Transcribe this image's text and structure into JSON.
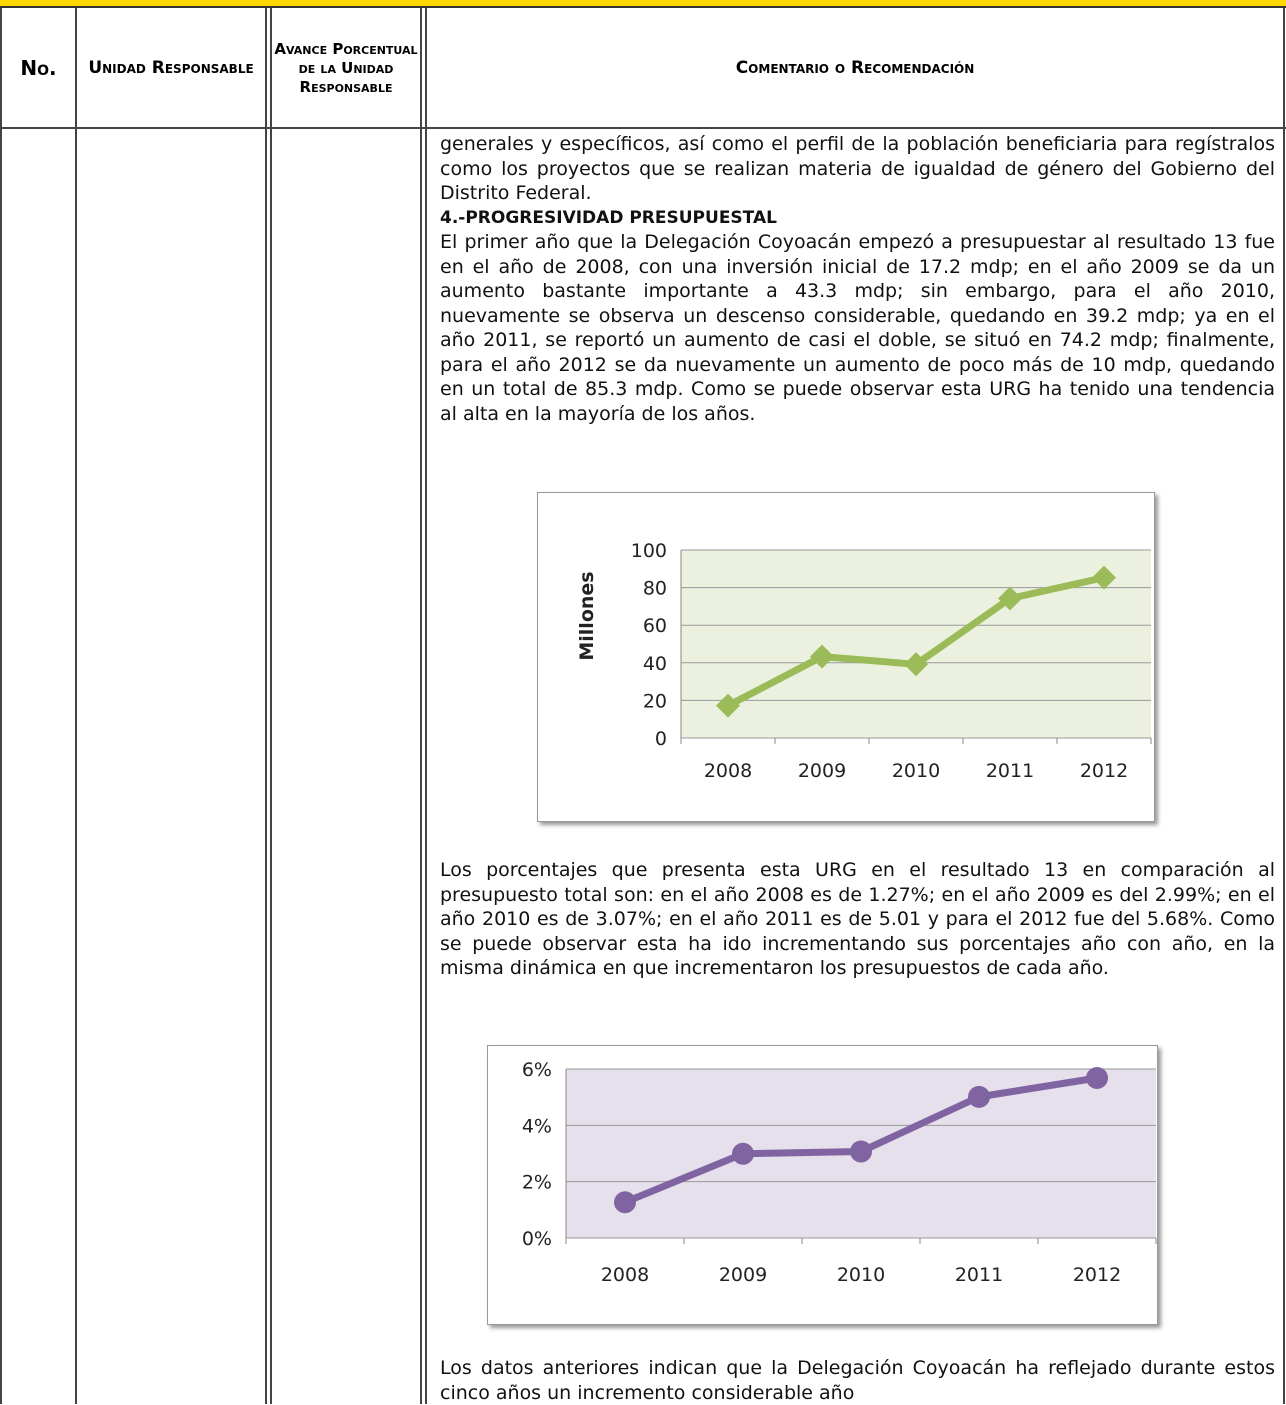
{
  "header": {
    "no": "No.",
    "unidad": "Unidad Responsable",
    "avance": "Avance Porcentual de la Unidad Responsable",
    "comentario": "Comentario o Recomendación"
  },
  "body": {
    "p1": "generales y específicos, así como el perfil de la población beneficiaria para regístralos como los proyectos que se realizan materia de igualdad de género del Gobierno del Distrito Federal.",
    "heading": "4.-PROGRESIVIDAD PRESUPUESTAL",
    "p2": "El primer año que la Delegación Coyoacán empezó a presupuestar al resultado 13 fue en el año de 2008, con una inversión inicial de 17.2 mdp; en el año 2009 se da un aumento bastante importante a 43.3 mdp; sin embargo, para el año 2010, nuevamente se observa un descenso considerable, quedando en 39.2 mdp; ya en el año 2011, se reportó un aumento de casi el doble, se situó en 74.2 mdp; finalmente, para el año 2012 se da nuevamente un aumento de poco más de 10 mdp, quedando en un total de 85.3 mdp. Como se puede observar esta URG ha tenido una tendencia al alta en la mayoría de los años.",
    "p3": "Los porcentajes que presenta esta URG en el resultado 13 en comparación al presupuesto total son: en el año 2008 es de 1.27%; en el año 2009 es del 2.99%; en el año 2010 es de 3.07%; en el año 2011 es de 5.01 y para el 2012 fue del 5.68%. Como se puede observar esta ha ido incrementando sus porcentajes año con año, en la misma dinámica en que incrementaron los presupuestos de cada año.",
    "p4": "Los datos anteriores  indican que la Delegación Coyoacán ha reflejado durante estos cinco años un incremento considerable año"
  },
  "chart_data": [
    {
      "type": "line",
      "y_label": "Millones",
      "categories": [
        "2008",
        "2009",
        "2010",
        "2011",
        "2012"
      ],
      "values": [
        17.2,
        43.3,
        39.2,
        74.2,
        85.3
      ],
      "color": "#9bbb59",
      "marker": "diamond",
      "background": "#ebf1de",
      "ylim": [
        0,
        100
      ],
      "yticks": [
        0,
        20,
        40,
        60,
        80,
        100
      ],
      "grid": true
    },
    {
      "type": "line",
      "categories": [
        "2008",
        "2009",
        "2010",
        "2011",
        "2012"
      ],
      "values": [
        1.27,
        2.99,
        3.07,
        5.01,
        5.68
      ],
      "color": "#8064a2",
      "marker": "circle",
      "background": "#e6e0ec",
      "ylim": [
        0,
        6
      ],
      "yticks": [
        {
          "value": 0,
          "label": "0%"
        },
        {
          "value": 2,
          "label": "2%"
        },
        {
          "value": 4,
          "label": "4%"
        },
        {
          "value": 6,
          "label": "6%"
        }
      ],
      "grid": true
    }
  ]
}
